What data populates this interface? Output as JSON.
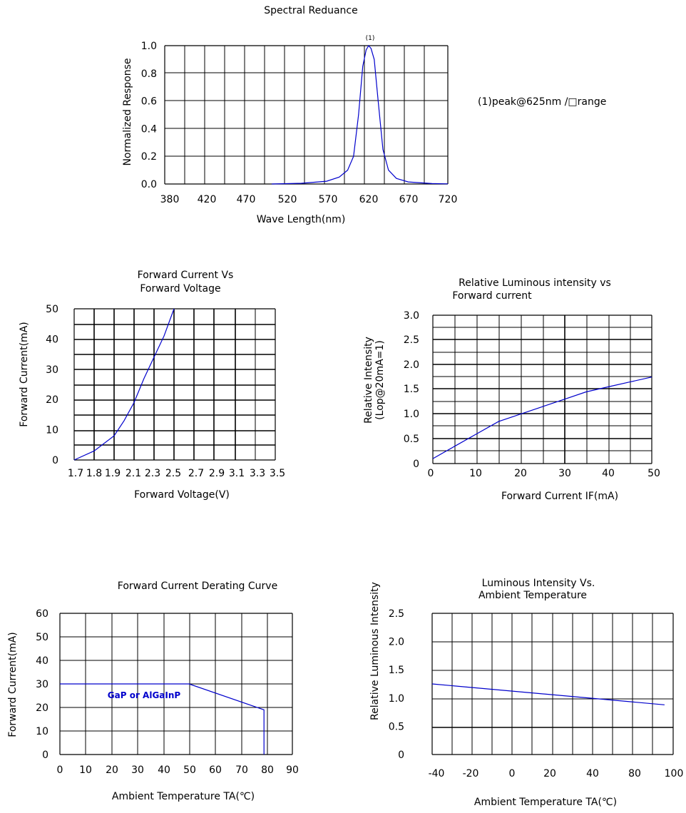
{
  "colors": {
    "curve": "#0000cc",
    "grid": "#000000",
    "background": "#ffffff"
  },
  "chart_data": [
    {
      "type": "line",
      "title": "Spectral  Reduance",
      "xlabel": "Wave Length(nm)",
      "ylabel": "Normalized  Response",
      "x_ticks": [
        "380",
        "420",
        "470",
        "520",
        "570",
        "620",
        "670",
        "720"
      ],
      "y_ticks": [
        "0.0",
        "0.2",
        "0.4",
        "0.6",
        "0.8",
        "1.0"
      ],
      "xlim": [
        380,
        720
      ],
      "ylim": [
        0,
        1
      ],
      "grid": true,
      "series": [
        {
          "x": [
            505,
            540,
            570,
            585,
            595,
            602,
            608,
            613,
            617,
            620,
            623,
            627,
            632,
            638,
            645,
            655,
            670,
            700,
            720
          ],
          "y": [
            0,
            0.005,
            0.02,
            0.05,
            0.1,
            0.2,
            0.5,
            0.85,
            0.97,
            1.0,
            0.98,
            0.9,
            0.6,
            0.25,
            0.1,
            0.04,
            0.015,
            0.003,
            0.001
          ]
        }
      ],
      "annotations": {
        "peak_marker": "(1)",
        "note": "(1)peak@625nm /□range"
      }
    },
    {
      "type": "line",
      "title": [
        "Forward Current Vs",
        "Forward Voltage"
      ],
      "xlabel": "Forward Voltage(V)",
      "ylabel": "Forward Current(mA)",
      "x_ticks": [
        "1.7",
        "1.8",
        "1.9",
        "2.1",
        "2.3",
        "2.5",
        "2.7",
        "2.9",
        "3.1",
        "3.3",
        "3.5"
      ],
      "y_ticks": [
        "0",
        "10",
        "20",
        "30",
        "40",
        "50"
      ],
      "xlim": [
        1.7,
        3.5
      ],
      "ylim": [
        0,
        50
      ],
      "grid": true,
      "series": [
        {
          "x": [
            1.7,
            1.8,
            1.9,
            2.0,
            2.1,
            2.2,
            2.3,
            2.4,
            2.5
          ],
          "y": [
            0,
            3,
            8,
            13,
            19,
            27,
            34,
            41,
            50
          ]
        }
      ]
    },
    {
      "type": "line",
      "title": [
        "Relative Luminous intensity vs",
        "Forward current"
      ],
      "xlabel": "Forward Current IF(mA)",
      "ylabel": [
        "Relative Intensity",
        "(Lop@20mA=1)"
      ],
      "x_ticks": [
        "0",
        "10",
        "20",
        "30",
        "40",
        "50"
      ],
      "y_ticks": [
        "0",
        "0.5",
        "1.0",
        "1.5",
        "2.0",
        "2.5",
        "3.0"
      ],
      "xlim": [
        0,
        50
      ],
      "ylim": [
        0,
        3
      ],
      "grid": true,
      "series": [
        {
          "x": [
            0,
            5,
            10,
            15,
            20,
            25,
            30,
            35,
            40,
            45,
            50
          ],
          "y": [
            0.1,
            0.35,
            0.6,
            0.85,
            1.0,
            1.15,
            1.3,
            1.45,
            1.55,
            1.65,
            1.75
          ]
        }
      ]
    },
    {
      "type": "line",
      "title": "Forward Current Derating Curve",
      "xlabel": "Ambient Temperature TA(℃)",
      "ylabel": "Forward Current(mA)",
      "x_ticks": [
        "0",
        "10",
        "20",
        "30",
        "40",
        "50",
        "60",
        "70",
        "80",
        "90"
      ],
      "y_ticks": [
        "0",
        "10",
        "20",
        "30",
        "40",
        "50",
        "60"
      ],
      "xlim": [
        0,
        90
      ],
      "ylim": [
        0,
        60
      ],
      "grid": true,
      "series": [
        {
          "name": "GaP  or  AlGaInP",
          "x": [
            0,
            50,
            79,
            79
          ],
          "y": [
            30,
            30,
            19,
            0
          ]
        }
      ]
    },
    {
      "type": "line",
      "title": [
        "Luminous Intensity Vs.",
        "Ambient Temperature"
      ],
      "xlabel": "Ambient Temperature TA(℃)",
      "ylabel": "Relative  Luminous  Intensity",
      "x_ticks": [
        "-40",
        "-20",
        "0",
        "20",
        "40",
        "80",
        "100"
      ],
      "y_ticks": [
        "0",
        "0.5",
        "1.0",
        "1.5",
        "2.0",
        "2.5"
      ],
      "xlim": [
        -40,
        100
      ],
      "ylim": [
        0,
        2.5
      ],
      "grid": true,
      "series": [
        {
          "x": [
            -40,
            95
          ],
          "y": [
            1.25,
            0.88
          ]
        }
      ]
    }
  ]
}
